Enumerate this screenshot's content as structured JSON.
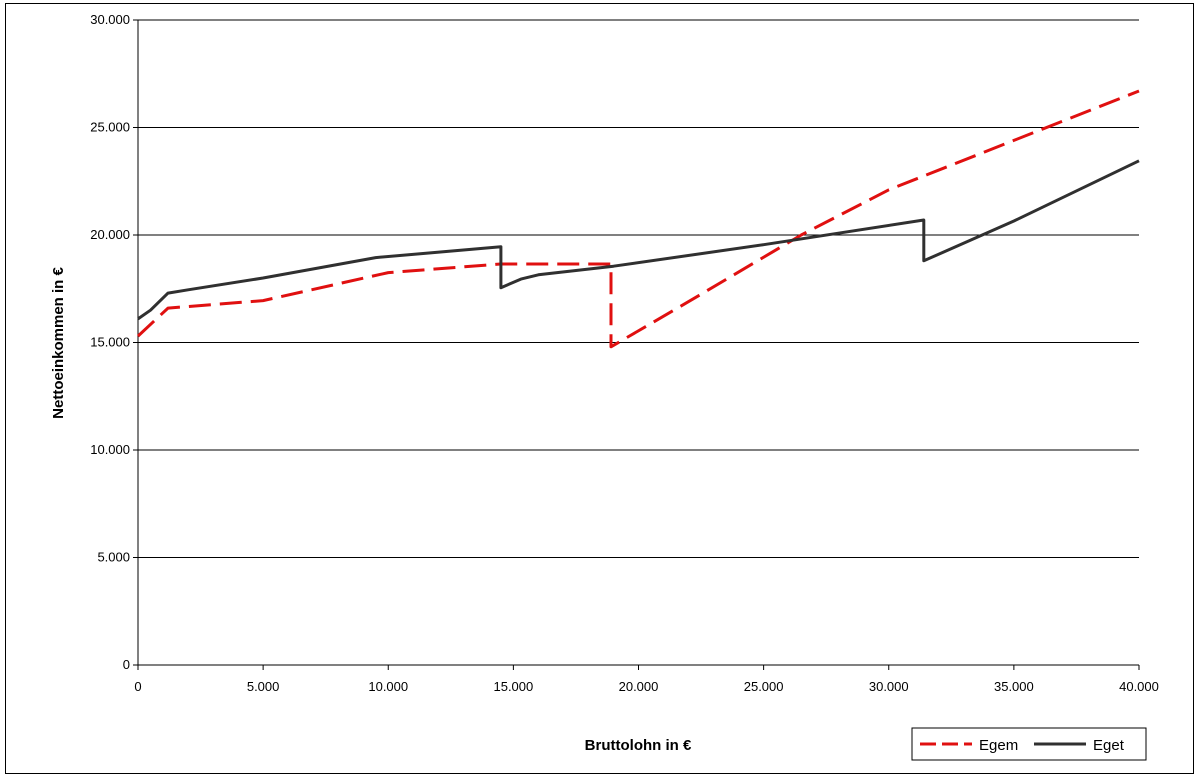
{
  "chart_data": {
    "type": "line",
    "title": "",
    "xlabel": "Bruttolohn in €",
    "ylabel": "Nettoeinkommen in €",
    "xlim": [
      0,
      40000
    ],
    "ylim": [
      0,
      30000
    ],
    "x_ticks": [
      "0",
      "5.000",
      "10.000",
      "15.000",
      "20.000",
      "25.000",
      "30.000",
      "35.000",
      "40.000"
    ],
    "y_ticks": [
      "0",
      "5.000",
      "10.000",
      "15.000",
      "20.000",
      "25.000",
      "30.000"
    ],
    "grid": "horizontal",
    "legend_position": "bottom-right",
    "series": [
      {
        "name": "Egem",
        "color": "#e01010",
        "style": "dashed",
        "points": [
          [
            0,
            15300
          ],
          [
            1200,
            16600
          ],
          [
            5000,
            16950
          ],
          [
            10000,
            18250
          ],
          [
            14500,
            18650
          ],
          [
            18900,
            18650
          ],
          [
            18900,
            14800
          ],
          [
            22000,
            16900
          ],
          [
            26500,
            20000
          ],
          [
            30000,
            22100
          ],
          [
            35000,
            24400
          ],
          [
            40000,
            26700
          ]
        ]
      },
      {
        "name": "Eget",
        "color": "#303030",
        "style": "solid",
        "points": [
          [
            0,
            16100
          ],
          [
            500,
            16500
          ],
          [
            1200,
            17300
          ],
          [
            2000,
            17450
          ],
          [
            5000,
            18000
          ],
          [
            9500,
            18950
          ],
          [
            14500,
            19450
          ],
          [
            14500,
            17550
          ],
          [
            15300,
            17950
          ],
          [
            16000,
            18150
          ],
          [
            19000,
            18550
          ],
          [
            25000,
            19550
          ],
          [
            31400,
            20700
          ],
          [
            31400,
            18800
          ],
          [
            35000,
            20650
          ],
          [
            40000,
            23450
          ]
        ]
      }
    ]
  }
}
